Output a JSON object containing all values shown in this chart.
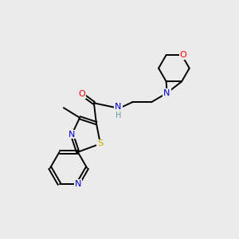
{
  "background_color": "#ebebeb",
  "fig_size": [
    3.0,
    3.0
  ],
  "dpi": 100,
  "atom_colors": {
    "C": "#000000",
    "N": "#0000cd",
    "O": "#ff0000",
    "S": "#ccaa00",
    "H": "#5f9ea0"
  },
  "bond_color": "#000000",
  "bond_width": 1.4,
  "font_size_atom": 8,
  "font_size_methyl": 7
}
